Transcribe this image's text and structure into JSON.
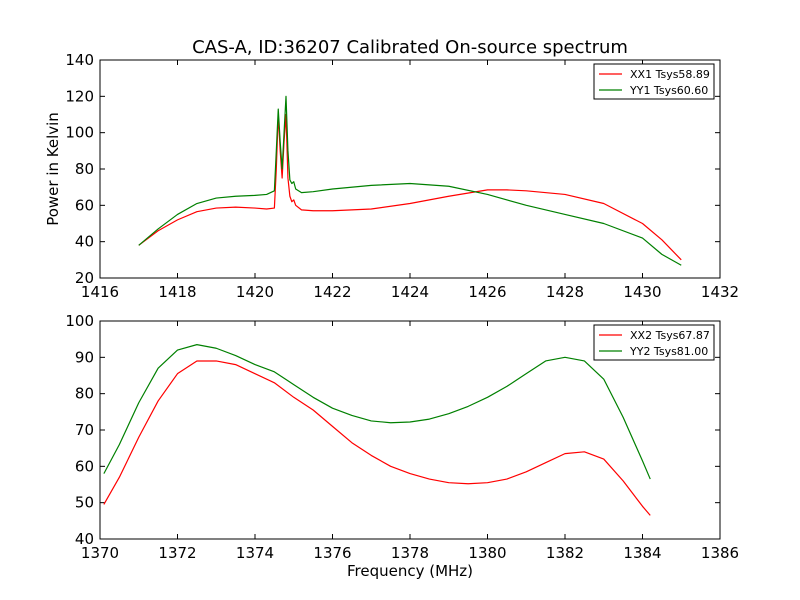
{
  "figure_title": "CAS-A, ID:36207 Calibrated On-source spectrum",
  "colors": {
    "red": "#ff0000",
    "green": "#008000"
  },
  "chart_data": [
    {
      "type": "line",
      "title": "CAS-A, ID:36207 Calibrated On-source spectrum",
      "xlabel": "",
      "ylabel": "Power in Kelvin",
      "xlim": [
        1416,
        1432
      ],
      "ylim": [
        20,
        140
      ],
      "xticks": [
        "1416",
        "1418",
        "1420",
        "1422",
        "1424",
        "1426",
        "1428",
        "1430",
        "1432"
      ],
      "yticks": [
        "20",
        "40",
        "60",
        "80",
        "100",
        "120",
        "140"
      ],
      "legend_position": "top-right",
      "grid": false,
      "series": [
        {
          "name": "XX1 Tsys58.89",
          "color": "#ff0000",
          "points": [
            [
              1417.0,
              38
            ],
            [
              1417.5,
              46
            ],
            [
              1418.0,
              52
            ],
            [
              1418.5,
              56.5
            ],
            [
              1419.0,
              58.5
            ],
            [
              1419.5,
              59
            ],
            [
              1420.0,
              58.5
            ],
            [
              1420.3,
              58
            ],
            [
              1420.5,
              58.5
            ],
            [
              1420.55,
              80
            ],
            [
              1420.6,
              110
            ],
            [
              1420.65,
              90
            ],
            [
              1420.7,
              75
            ],
            [
              1420.75,
              95
            ],
            [
              1420.8,
              110
            ],
            [
              1420.85,
              75
            ],
            [
              1420.9,
              65
            ],
            [
              1420.95,
              62
            ],
            [
              1421.0,
              63
            ],
            [
              1421.05,
              60
            ],
            [
              1421.2,
              57.5
            ],
            [
              1421.5,
              57
            ],
            [
              1422.0,
              57
            ],
            [
              1423.0,
              58
            ],
            [
              1424.0,
              61
            ],
            [
              1425.0,
              65
            ],
            [
              1426.0,
              68.5
            ],
            [
              1426.5,
              68.5
            ],
            [
              1427.0,
              68
            ],
            [
              1428.0,
              66
            ],
            [
              1429.0,
              61
            ],
            [
              1430.0,
              50
            ],
            [
              1430.5,
              41
            ],
            [
              1431.0,
              30
            ]
          ]
        },
        {
          "name": "YY1 Tsys60.60",
          "color": "#008000",
          "points": [
            [
              1417.0,
              38
            ],
            [
              1417.5,
              47
            ],
            [
              1418.0,
              55
            ],
            [
              1418.5,
              61
            ],
            [
              1419.0,
              64
            ],
            [
              1419.5,
              65
            ],
            [
              1420.0,
              65.5
            ],
            [
              1420.3,
              66
            ],
            [
              1420.5,
              68
            ],
            [
              1420.55,
              90
            ],
            [
              1420.6,
              113
            ],
            [
              1420.65,
              95
            ],
            [
              1420.7,
              80
            ],
            [
              1420.75,
              100
            ],
            [
              1420.8,
              120
            ],
            [
              1420.85,
              90
            ],
            [
              1420.9,
              74
            ],
            [
              1420.95,
              72
            ],
            [
              1421.0,
              73
            ],
            [
              1421.05,
              69
            ],
            [
              1421.2,
              67
            ],
            [
              1421.5,
              67.5
            ],
            [
              1422.0,
              69
            ],
            [
              1423.0,
              71
            ],
            [
              1424.0,
              72
            ],
            [
              1425.0,
              70.5
            ],
            [
              1426.0,
              66
            ],
            [
              1427.0,
              60
            ],
            [
              1428.0,
              55
            ],
            [
              1429.0,
              50
            ],
            [
              1430.0,
              42
            ],
            [
              1430.5,
              33
            ],
            [
              1431.0,
              27
            ]
          ]
        }
      ]
    },
    {
      "type": "line",
      "title": "",
      "xlabel": "Frequency (MHz)",
      "ylabel": "",
      "xlim": [
        1370,
        1386
      ],
      "ylim": [
        40,
        100
      ],
      "xticks": [
        "1370",
        "1372",
        "1374",
        "1376",
        "1378",
        "1380",
        "1382",
        "1384",
        "1386"
      ],
      "yticks": [
        "40",
        "50",
        "60",
        "70",
        "80",
        "90",
        "100"
      ],
      "legend_position": "top-right",
      "grid": false,
      "series": [
        {
          "name": "XX2 Tsys67.87",
          "color": "#ff0000",
          "points": [
            [
              1370.1,
              49.5
            ],
            [
              1370.5,
              57
            ],
            [
              1371.0,
              68
            ],
            [
              1371.5,
              78
            ],
            [
              1372.0,
              85.5
            ],
            [
              1372.5,
              89
            ],
            [
              1373.0,
              89
            ],
            [
              1373.5,
              88
            ],
            [
              1374.0,
              85.5
            ],
            [
              1374.5,
              83
            ],
            [
              1375.0,
              79
            ],
            [
              1375.5,
              75.5
            ],
            [
              1376.0,
              71
            ],
            [
              1376.5,
              66.5
            ],
            [
              1377.0,
              63
            ],
            [
              1377.5,
              60
            ],
            [
              1378.0,
              58
            ],
            [
              1378.5,
              56.5
            ],
            [
              1379.0,
              55.5
            ],
            [
              1379.5,
              55.2
            ],
            [
              1380.0,
              55.5
            ],
            [
              1380.5,
              56.5
            ],
            [
              1381.0,
              58.5
            ],
            [
              1381.5,
              61
            ],
            [
              1382.0,
              63.5
            ],
            [
              1382.5,
              64
            ],
            [
              1383.0,
              62
            ],
            [
              1383.5,
              56
            ],
            [
              1384.0,
              49
            ],
            [
              1384.2,
              46.5
            ]
          ]
        },
        {
          "name": "YY2 Tsys81.00",
          "color": "#008000",
          "points": [
            [
              1370.1,
              58
            ],
            [
              1370.5,
              66
            ],
            [
              1371.0,
              77.5
            ],
            [
              1371.5,
              87
            ],
            [
              1372.0,
              92
            ],
            [
              1372.5,
              93.5
            ],
            [
              1373.0,
              92.5
            ],
            [
              1373.5,
              90.5
            ],
            [
              1374.0,
              88
            ],
            [
              1374.5,
              86
            ],
            [
              1375.0,
              82.5
            ],
            [
              1375.5,
              79
            ],
            [
              1376.0,
              76
            ],
            [
              1376.5,
              74
            ],
            [
              1377.0,
              72.5
            ],
            [
              1377.5,
              72
            ],
            [
              1378.0,
              72.2
            ],
            [
              1378.5,
              73
            ],
            [
              1379.0,
              74.5
            ],
            [
              1379.5,
              76.5
            ],
            [
              1380.0,
              79
            ],
            [
              1380.5,
              82
            ],
            [
              1381.0,
              85.5
            ],
            [
              1381.5,
              89
            ],
            [
              1382.0,
              90
            ],
            [
              1382.5,
              89
            ],
            [
              1383.0,
              84
            ],
            [
              1383.5,
              73.5
            ],
            [
              1384.0,
              61.5
            ],
            [
              1384.2,
              56.5
            ]
          ]
        }
      ]
    }
  ]
}
